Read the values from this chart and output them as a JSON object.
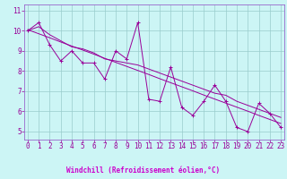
{
  "title": "",
  "xlabel": "Windchill (Refroidissement éolien,°C)",
  "x": [
    0,
    1,
    2,
    3,
    4,
    5,
    6,
    7,
    8,
    9,
    10,
    11,
    12,
    13,
    14,
    15,
    16,
    17,
    18,
    19,
    20,
    21,
    22,
    23
  ],
  "y_main": [
    10.0,
    10.4,
    9.3,
    8.5,
    9.0,
    8.4,
    8.4,
    7.6,
    9.0,
    8.6,
    10.4,
    6.6,
    6.5,
    8.2,
    6.2,
    5.8,
    6.5,
    7.3,
    6.5,
    5.2,
    5.0,
    6.4,
    5.9,
    5.2
  ],
  "y_smooth": [
    10.0,
    10.2,
    9.8,
    9.5,
    9.2,
    9.1,
    8.9,
    8.6,
    8.5,
    8.4,
    8.3,
    8.1,
    7.9,
    7.7,
    7.5,
    7.3,
    7.1,
    6.9,
    6.8,
    6.5,
    6.3,
    6.1,
    5.9,
    5.7
  ],
  "y_trend": [
    10.05,
    9.85,
    9.65,
    9.44,
    9.24,
    9.04,
    8.84,
    8.63,
    8.43,
    8.23,
    8.03,
    7.83,
    7.62,
    7.42,
    7.22,
    7.02,
    6.81,
    6.61,
    6.41,
    6.21,
    6.01,
    5.8,
    5.6,
    5.4
  ],
  "line_color": "#990099",
  "bg_color": "#ccf5f5",
  "xlabel_bg": "#330066",
  "xlabel_fg": "#cc00cc",
  "grid_color": "#99cccc",
  "spine_color": "#9966cc",
  "ylim": [
    4.6,
    11.3
  ],
  "xlim": [
    -0.3,
    23.3
  ],
  "yticks": [
    5,
    6,
    7,
    8,
    9,
    10,
    11
  ],
  "xticks": [
    0,
    1,
    2,
    3,
    4,
    5,
    6,
    7,
    8,
    9,
    10,
    11,
    12,
    13,
    14,
    15,
    16,
    17,
    18,
    19,
    20,
    21,
    22,
    23
  ],
  "tick_fontsize": 5.5,
  "xlabel_fontsize": 5.5,
  "lw": 0.7,
  "marker_size": 2.5
}
